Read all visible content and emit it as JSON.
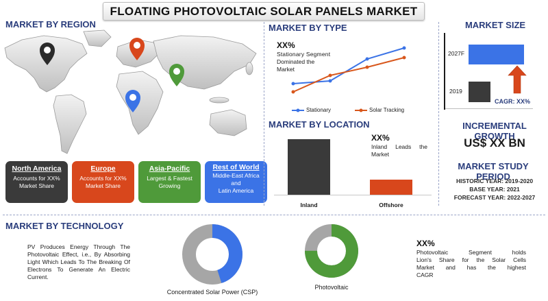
{
  "title": "FLOATING PHOTOVOLTAIC SOLAR PANELS MARKET",
  "region": {
    "heading": "MARKET BY REGION",
    "cards": [
      {
        "title": "North America",
        "lines": [
          "Accounts for XX%",
          "Market Share"
        ],
        "color": "#3a3a3a"
      },
      {
        "title": "Europe",
        "lines": [
          "Accounts for XX%",
          "Market Share"
        ],
        "color": "#d8471c"
      },
      {
        "title": "Asia-Pacific",
        "lines": [
          "Largest & Fastest",
          "Growing"
        ],
        "color": "#4f9a3a"
      },
      {
        "title": "Rest of World",
        "lines": [
          "Middle-East Africa",
          "and",
          "Latin America"
        ],
        "color": "#3b73e6"
      }
    ],
    "pin_colors": {
      "north_america": "#2b2b2b",
      "europe": "#d8471c",
      "asia": "#4f9a3a",
      "africa": "#3b73e6"
    }
  },
  "type": {
    "heading": "MARKET BY TYPE",
    "xx": "XX%",
    "desc": [
      "Stationary Segment",
      "Dominated the",
      "Market"
    ],
    "legend": [
      "Stationary",
      "Solar Tracking"
    ]
  },
  "location": {
    "heading": "MARKET BY LOCATION",
    "xx": "XX%",
    "desc": [
      "Inland Leads the",
      "Market"
    ],
    "categories": [
      "Inland",
      "Offshore"
    ]
  },
  "size": {
    "heading": "MARKET SIZE",
    "labels": [
      "2027F",
      "2019"
    ],
    "cagr": "CAGR: XX%"
  },
  "growth": {
    "heading": "INCREMENTAL GROWTH",
    "value": "US$ XX BN"
  },
  "study": {
    "heading": "MARKET STUDY PERIOD",
    "historic": "HISTORIC YEAR: 2019-2020",
    "base": "BASE YEAR: 2021",
    "forecast": "FORECAST YEAR: 2022-2027"
  },
  "technology": {
    "heading": "MARKET BY TECHNOLOGY",
    "desc": [
      "PV Produces Energy Through The",
      "Photovoltaic Effect, i.e., By Absorbing",
      "Light Which Leads To The Breaking Of",
      "Electrons To Generate An Electric",
      "Current."
    ],
    "csp_label": "Concentrated Solar Power (CSP)",
    "pv_label": "Photovoltaic",
    "xx": "XX%",
    "note": [
      "Photovoltaic Segment holds",
      "Lion's Share for the Solar Cells",
      "Market and has the highest",
      "CAGR"
    ]
  },
  "colors": {
    "heading": "#2a3d7c",
    "blue": "#3b73e6",
    "orange": "#d8471c",
    "green": "#4f9a3a",
    "dark": "#3a3a3a",
    "grey": "#a6a6a6"
  }
}
